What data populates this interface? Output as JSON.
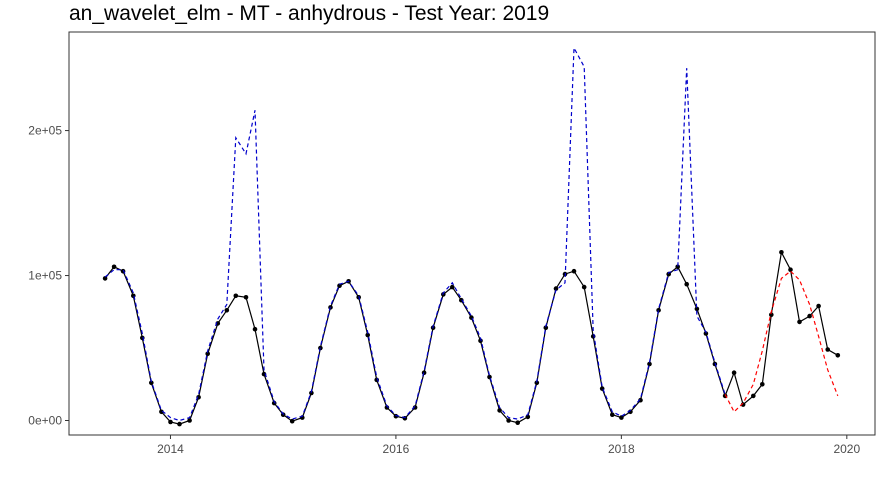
{
  "chart_data": {
    "type": "line",
    "title": "an_wavelet_elm - MT - anhydrous - Test Year: 2019",
    "xlabel": "",
    "ylabel": "",
    "xlim": [
      2013.1,
      2020.25
    ],
    "ylim": [
      -10000,
      268000
    ],
    "x_ticks": [
      2014,
      2016,
      2018,
      2020
    ],
    "x_tick_labels": [
      "2014",
      "2016",
      "2018",
      "2020"
    ],
    "y_ticks": [
      0,
      100000,
      200000
    ],
    "y_tick_labels": [
      "0e+00",
      "1e+05",
      "2e+05"
    ],
    "grid": false,
    "legend": "none",
    "series": [
      {
        "style": "solid-with-points",
        "color": "#000000",
        "x": [
          2013.42,
          2013.5,
          2013.58,
          2013.67,
          2013.75,
          2013.83,
          2013.92,
          2014.0,
          2014.08,
          2014.17,
          2014.25,
          2014.33,
          2014.42,
          2014.5,
          2014.58,
          2014.67,
          2014.75,
          2014.83,
          2014.92,
          2015.0,
          2015.08,
          2015.17,
          2015.25,
          2015.33,
          2015.42,
          2015.5,
          2015.58,
          2015.67,
          2015.75,
          2015.83,
          2015.92,
          2016.0,
          2016.08,
          2016.17,
          2016.25,
          2016.33,
          2016.42,
          2016.5,
          2016.58,
          2016.67,
          2016.75,
          2016.83,
          2016.92,
          2017.0,
          2017.08,
          2017.17,
          2017.25,
          2017.33,
          2017.42,
          2017.5,
          2017.58,
          2017.67,
          2017.75,
          2017.83,
          2017.92,
          2018.0,
          2018.08,
          2018.17,
          2018.25,
          2018.33,
          2018.42,
          2018.5,
          2018.58,
          2018.67,
          2018.75,
          2018.83,
          2018.92,
          2019.0,
          2019.08,
          2019.17,
          2019.25,
          2019.33,
          2019.42,
          2019.5,
          2019.58,
          2019.67,
          2019.75,
          2019.83,
          2019.92
        ],
        "values": [
          98000,
          106000,
          103000,
          86000,
          57000,
          26000,
          6000,
          -1000,
          -2500,
          0,
          16000,
          46000,
          67000,
          76000,
          86000,
          85000,
          63000,
          32000,
          12000,
          4000,
          -500,
          2000,
          19000,
          50000,
          78000,
          93000,
          96000,
          85000,
          59000,
          28000,
          9000,
          3000,
          1500,
          9000,
          33000,
          64000,
          87000,
          92000,
          83000,
          71000,
          55000,
          30000,
          7000,
          0,
          -1500,
          2500,
          26000,
          64000,
          91000,
          101000,
          103000,
          92000,
          58000,
          22000,
          4000,
          2000,
          6000,
          14000,
          39000,
          76000,
          101000,
          106000,
          94000,
          77000,
          60000,
          39000,
          17000,
          33000,
          11000,
          17000,
          25000,
          73000,
          116000,
          104000,
          68000,
          72000,
          79000,
          49000,
          45000
        ]
      },
      {
        "style": "dashed",
        "color": "#0000cc",
        "x": [
          2013.42,
          2013.5,
          2013.58,
          2013.67,
          2013.75,
          2013.83,
          2013.92,
          2014.0,
          2014.08,
          2014.17,
          2014.25,
          2014.33,
          2014.42,
          2014.5,
          2014.58,
          2014.67,
          2014.75,
          2014.83,
          2014.92,
          2015.0,
          2015.08,
          2015.17,
          2015.25,
          2015.33,
          2015.42,
          2015.5,
          2015.58,
          2015.67,
          2015.75,
          2015.83,
          2015.92,
          2016.0,
          2016.08,
          2016.17,
          2016.25,
          2016.33,
          2016.42,
          2016.5,
          2016.58,
          2016.67,
          2016.75,
          2016.83,
          2016.92,
          2017.0,
          2017.08,
          2017.17,
          2017.25,
          2017.33,
          2017.42,
          2017.5,
          2017.58,
          2017.67,
          2017.75,
          2017.83,
          2017.92,
          2018.0,
          2018.08,
          2018.17,
          2018.25,
          2018.33,
          2018.42,
          2018.5,
          2018.58,
          2018.67,
          2018.75,
          2018.83,
          2018.92
        ],
        "values": [
          99000,
          104000,
          104000,
          88000,
          60000,
          27000,
          7000,
          2000,
          0,
          2000,
          18000,
          48000,
          70000,
          80000,
          195000,
          184000,
          214000,
          35000,
          13000,
          4500,
          1000,
          3000,
          20000,
          51000,
          79000,
          94000,
          96000,
          86000,
          61000,
          30000,
          10000,
          3500,
          2000,
          10000,
          34000,
          65000,
          88000,
          95000,
          84000,
          72000,
          57000,
          31000,
          9000,
          2000,
          1000,
          4000,
          27000,
          65000,
          90000,
          95000,
          257000,
          244000,
          62000,
          23000,
          6000,
          3000,
          7000,
          15000,
          40000,
          77000,
          102000,
          104000,
          243000,
          72000,
          61000,
          40000,
          18000
        ]
      },
      {
        "style": "dashed",
        "color": "#ff0000",
        "x": [
          2018.92,
          2019.0,
          2019.08,
          2019.17,
          2019.25,
          2019.33,
          2019.42,
          2019.5,
          2019.58,
          2019.67,
          2019.75,
          2019.83,
          2019.92
        ],
        "values": [
          18000,
          6000,
          12000,
          25000,
          48000,
          75000,
          98000,
          103000,
          97000,
          80000,
          58000,
          35000,
          17000
        ]
      }
    ]
  }
}
